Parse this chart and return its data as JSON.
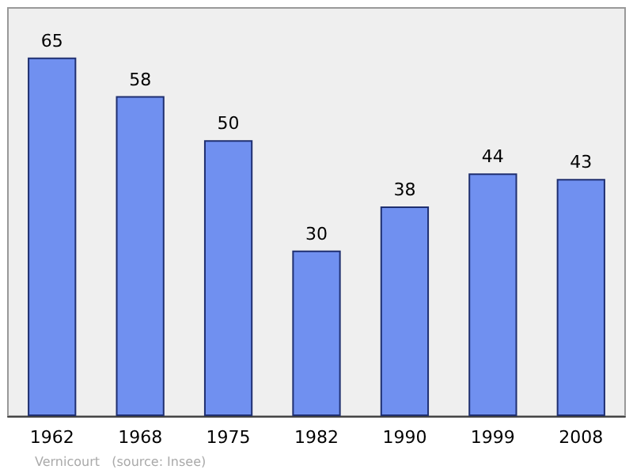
{
  "chart_data": {
    "type": "bar",
    "categories": [
      "1962",
      "1968",
      "1975",
      "1982",
      "1990",
      "1999",
      "2008"
    ],
    "values": [
      65,
      58,
      50,
      30,
      38,
      44,
      43
    ],
    "color": "#7090f0",
    "ylim": [
      0,
      74
    ],
    "data_labels": true,
    "annotations": [
      "Vernicourt   (source: Insee)"
    ]
  }
}
